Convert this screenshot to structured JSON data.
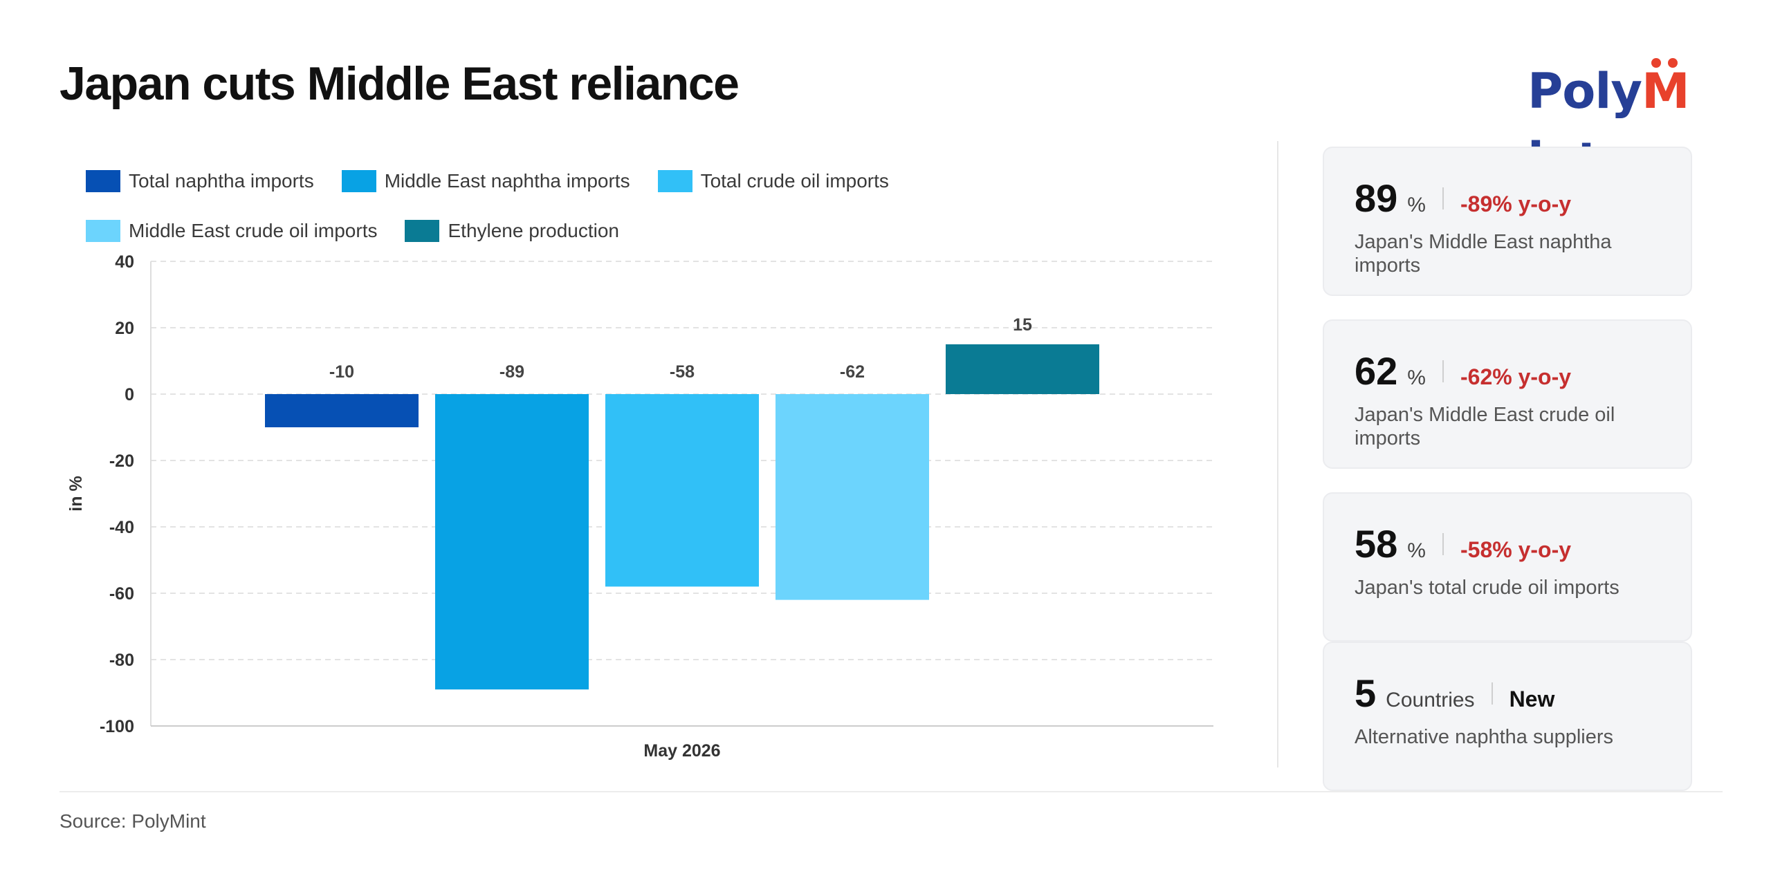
{
  "header": {
    "title": "Japan cuts Middle East reliance",
    "logo_left": "Poly",
    "logo_accent": "M",
    "logo_right": "int"
  },
  "colors": {
    "brand_blue": "#263f96",
    "brand_red": "#e8412c",
    "negative": "#c62f2f"
  },
  "chart_data": {
    "type": "bar",
    "categories": [
      "May 2026"
    ],
    "series": [
      {
        "name": "Total naphtha imports",
        "values": [
          -10
        ],
        "color": "#0650b4"
      },
      {
        "name": "Middle East naphtha imports",
        "values": [
          -89
        ],
        "color": "#08a2e4"
      },
      {
        "name": "Total crude oil imports",
        "values": [
          -58
        ],
        "color": "#31c0f7"
      },
      {
        "name": "Middle East crude oil imports",
        "values": [
          -62
        ],
        "color": "#6cd4fd"
      },
      {
        "name": "Ethylene production",
        "values": [
          15
        ],
        "color": "#0a7b94"
      }
    ],
    "title": "",
    "xlabel": "May 2026",
    "ylabel": "in %",
    "ylim": [
      -100,
      40
    ],
    "yticks": [
      40,
      20,
      0,
      -20,
      -40,
      -60,
      -80,
      -100
    ],
    "grid": true,
    "legend": "top-left"
  },
  "cards": [
    {
      "value": "89",
      "unit": "%",
      "change": "-89% y-o-y",
      "change_type": "negative",
      "desc": "Japan's Middle East naphtha imports"
    },
    {
      "value": "62",
      "unit": "%",
      "change": "-62% y-o-y",
      "change_type": "negative",
      "desc": "Japan's Middle East crude oil imports"
    },
    {
      "value": "58",
      "unit": "%",
      "change": "-58% y-o-y",
      "change_type": "negative",
      "desc": "Japan's total crude oil imports"
    },
    {
      "value": "5",
      "unit": "Countries",
      "change": "New",
      "change_type": "neutral",
      "desc": "Alternative naphtha suppliers"
    }
  ],
  "footer": {
    "source": "Source: PolyMint"
  }
}
